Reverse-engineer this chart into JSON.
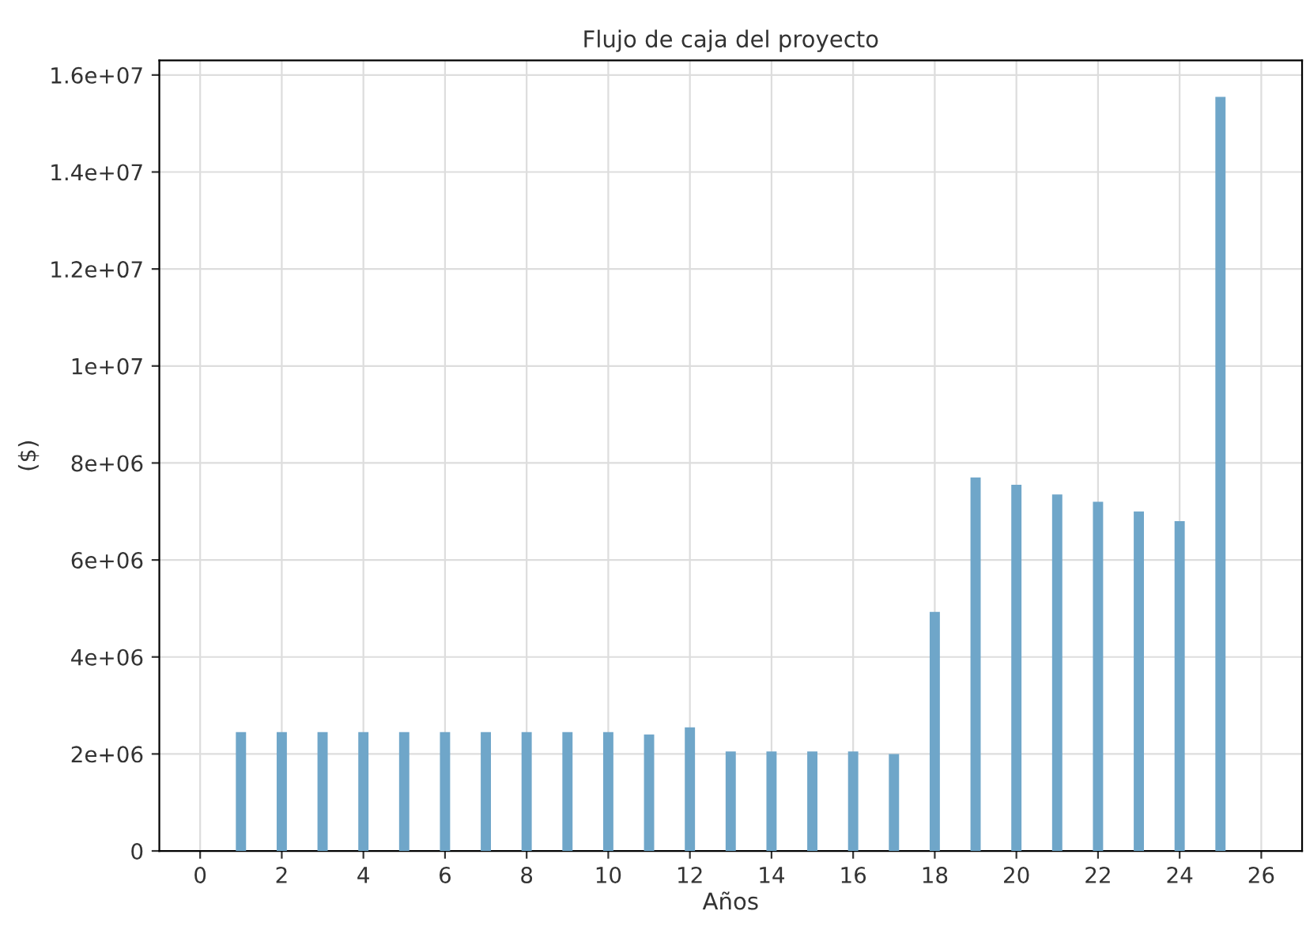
{
  "chart_data": {
    "type": "bar",
    "title": "Flujo de caja del proyecto",
    "xlabel": "Años",
    "ylabel": "($)",
    "x": [
      1,
      2,
      3,
      4,
      5,
      6,
      7,
      8,
      9,
      10,
      11,
      12,
      13,
      14,
      15,
      16,
      17,
      18,
      19,
      20,
      21,
      22,
      23,
      24,
      25
    ],
    "values": [
      2450000,
      2450000,
      2450000,
      2450000,
      2450000,
      2450000,
      2450000,
      2450000,
      2450000,
      2450000,
      2400000,
      2550000,
      2050000,
      2050000,
      2050000,
      2050000,
      2000000,
      4930000,
      7700000,
      7550000,
      7350000,
      7200000,
      7000000,
      6800000,
      15550000
    ],
    "color": "#6fa6c9",
    "xlim": [
      -1,
      27
    ],
    "xticks": [
      0,
      2,
      4,
      6,
      8,
      10,
      12,
      14,
      16,
      18,
      20,
      22,
      24,
      26
    ],
    "ylim": [
      0,
      16300000
    ],
    "yticks": [
      {
        "value": 0,
        "label": "0"
      },
      {
        "value": 2000000,
        "label": "2e+06"
      },
      {
        "value": 4000000,
        "label": "4e+06"
      },
      {
        "value": 6000000,
        "label": "6e+06"
      },
      {
        "value": 8000000,
        "label": "8e+06"
      },
      {
        "value": 10000000,
        "label": "1e+07"
      },
      {
        "value": 12000000,
        "label": "1.2e+07"
      },
      {
        "value": 14000000,
        "label": "1.4e+07"
      },
      {
        "value": 16000000,
        "label": "1.6e+07"
      }
    ],
    "grid": true
  }
}
